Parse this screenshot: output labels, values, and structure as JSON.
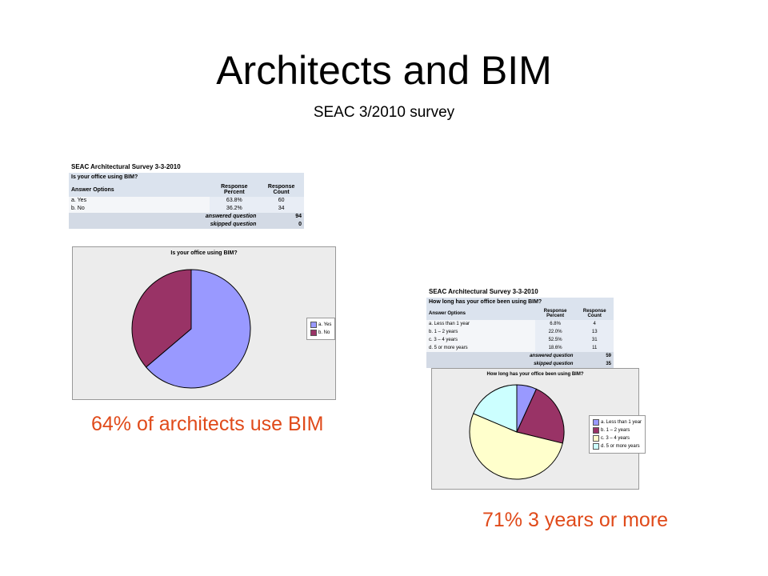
{
  "slide": {
    "title": "Architects and BIM",
    "subtitle": "SEAC 3/2010 survey",
    "callout_1": "64% of architects use BIM",
    "callout_2": "71% 3 years or more"
  },
  "survey_1": {
    "survey_title": "SEAC Architectural Survey 3-3-2010",
    "question": "Is your office using BIM?",
    "headers": [
      "Answer Options",
      "Response Percent",
      "Response Count"
    ],
    "rows": [
      {
        "option": "a. Yes",
        "percent": "63.8%",
        "count": "60"
      },
      {
        "option": "b. No",
        "percent": "36.2%",
        "count": "34"
      }
    ],
    "answered_label": "answered question",
    "answered_value": "94",
    "skipped_label": "skipped question",
    "skipped_value": "0"
  },
  "survey_2": {
    "survey_title": "SEAC Architectural Survey 3-3-2010",
    "question": "How long has your office been using BIM?",
    "headers": [
      "Answer Options",
      "Response Percent",
      "Response Count"
    ],
    "rows": [
      {
        "option": "a. Less than 1 year",
        "percent": "6.8%",
        "count": "4"
      },
      {
        "option": "b. 1 – 2 years",
        "percent": "22.0%",
        "count": "13"
      },
      {
        "option": "c. 3 – 4 years",
        "percent": "52.5%",
        "count": "31"
      },
      {
        "option": "d. 5 or more years",
        "percent": "18.6%",
        "count": "11"
      }
    ],
    "answered_label": "answered question",
    "answered_value": "59",
    "skipped_label": "skipped question",
    "skipped_value": "35"
  },
  "chart_data": [
    {
      "type": "pie",
      "title": "Is your office using BIM?",
      "categories": [
        "a. Yes",
        "b. No"
      ],
      "values": [
        63.8,
        36.2
      ],
      "colors": [
        "#9999ff",
        "#993366"
      ],
      "legend": "right"
    },
    {
      "type": "pie",
      "title": "How long has your office been using BIM?",
      "categories": [
        "a. Less than 1 year",
        "b. 1 – 2 years",
        "c. 3 – 4 years",
        "d. 5 or more years"
      ],
      "values": [
        6.8,
        22.0,
        52.5,
        18.6
      ],
      "colors": [
        "#9999ff",
        "#993366",
        "#ffffcc",
        "#ccffff"
      ],
      "legend": "right"
    }
  ]
}
